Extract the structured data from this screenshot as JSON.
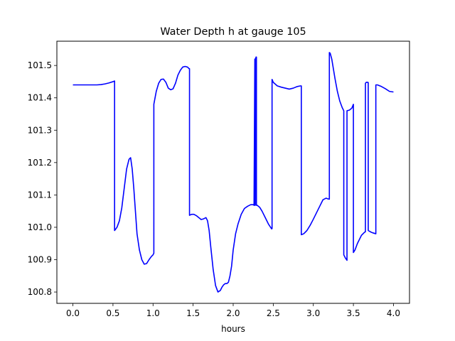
{
  "chart_data": {
    "type": "line",
    "title": "Water Depth h at gauge 105",
    "xlabel": "hours",
    "ylabel": "",
    "xlim": [
      -0.2,
      4.2
    ],
    "ylim": [
      100.765,
      101.575
    ],
    "x_ticks": [
      0.0,
      0.5,
      1.0,
      1.5,
      2.0,
      2.5,
      3.0,
      3.5,
      4.0
    ],
    "x_tick_labels": [
      "0.0",
      "0.5",
      "1.0",
      "1.5",
      "2.0",
      "2.5",
      "3.0",
      "3.5",
      "4.0"
    ],
    "y_ticks": [
      100.8,
      100.9,
      101.0,
      101.1,
      101.2,
      101.3,
      101.4,
      101.5
    ],
    "y_tick_labels": [
      "100.8",
      "100.9",
      "101.0",
      "101.1",
      "101.2",
      "101.3",
      "101.4",
      "101.5"
    ],
    "grid": false,
    "line_color": "#0000ff",
    "series": [
      {
        "x": [
          0.0,
          0.1,
          0.2,
          0.3,
          0.35,
          0.4,
          0.45,
          0.5,
          0.52,
          0.52,
          0.55,
          0.58,
          0.61,
          0.64,
          0.67,
          0.7,
          0.72,
          0.74,
          0.76,
          0.78,
          0.8,
          0.83,
          0.86,
          0.89,
          0.92,
          0.95,
          0.98,
          1.0,
          1.01,
          1.01,
          1.04,
          1.07,
          1.1,
          1.13,
          1.16,
          1.19,
          1.22,
          1.25,
          1.28,
          1.31,
          1.34,
          1.37,
          1.4,
          1.43,
          1.45,
          1.455,
          1.455,
          1.48,
          1.51,
          1.54,
          1.57,
          1.6,
          1.63,
          1.66,
          1.68,
          1.7,
          1.72,
          1.75,
          1.78,
          1.81,
          1.84,
          1.86,
          1.88,
          1.9,
          1.92,
          1.94,
          1.96,
          1.98,
          2.0,
          2.03,
          2.06,
          2.1,
          2.14,
          2.18,
          2.22,
          2.25,
          2.26,
          2.27,
          2.27,
          2.275,
          2.28,
          2.285,
          2.29,
          2.29,
          2.3,
          2.33,
          2.36,
          2.4,
          2.44,
          2.48,
          2.485,
          2.485,
          2.5,
          2.55,
          2.6,
          2.65,
          2.7,
          2.75,
          2.8,
          2.84,
          2.85,
          2.85,
          2.88,
          2.92,
          2.96,
          3.0,
          3.04,
          3.08,
          3.12,
          3.16,
          3.18,
          3.2,
          3.2,
          3.21,
          3.23,
          3.25,
          3.27,
          3.3,
          3.33,
          3.36,
          3.38,
          3.38,
          3.4,
          3.42,
          3.42,
          3.45,
          3.48,
          3.5,
          3.5,
          3.52,
          3.55,
          3.6,
          3.64,
          3.65,
          3.65,
          3.66,
          3.68,
          3.685,
          3.685,
          3.7,
          3.72,
          3.74,
          3.78,
          3.78,
          3.8,
          3.85,
          3.9,
          3.95,
          4.0
        ],
        "y": [
          101.44,
          101.44,
          101.44,
          101.44,
          101.441,
          101.443,
          101.446,
          101.45,
          101.452,
          100.99,
          101.0,
          101.02,
          101.06,
          101.12,
          101.18,
          101.21,
          101.215,
          101.18,
          101.12,
          101.05,
          100.98,
          100.93,
          100.9,
          100.886,
          100.888,
          100.9,
          100.91,
          100.915,
          100.92,
          101.38,
          101.42,
          101.445,
          101.457,
          101.458,
          101.448,
          101.43,
          101.425,
          101.428,
          101.445,
          101.47,
          101.485,
          101.495,
          101.497,
          101.495,
          101.49,
          101.49,
          101.037,
          101.04,
          101.04,
          101.036,
          101.03,
          101.024,
          101.026,
          101.03,
          101.02,
          100.99,
          100.94,
          100.87,
          100.82,
          100.8,
          100.805,
          100.815,
          100.822,
          100.826,
          100.826,
          100.83,
          100.85,
          100.88,
          100.93,
          100.98,
          101.01,
          101.04,
          101.058,
          101.065,
          101.07,
          101.07,
          101.068,
          101.52,
          101.068,
          101.068,
          101.52,
          101.526,
          101.526,
          101.068,
          101.068,
          101.062,
          101.05,
          101.03,
          101.01,
          100.995,
          100.996,
          101.457,
          101.448,
          101.437,
          101.433,
          101.43,
          101.427,
          101.43,
          101.435,
          101.437,
          101.437,
          100.977,
          100.98,
          100.99,
          101.006,
          101.025,
          101.045,
          101.065,
          101.085,
          101.09,
          101.088,
          101.087,
          101.54,
          101.538,
          101.52,
          101.49,
          101.46,
          101.42,
          101.39,
          101.37,
          101.36,
          100.915,
          100.905,
          100.898,
          101.36,
          101.362,
          101.368,
          101.38,
          100.922,
          100.93,
          100.95,
          100.975,
          100.985,
          100.986,
          101.445,
          101.448,
          101.448,
          101.447,
          100.99,
          100.988,
          100.985,
          100.983,
          100.98,
          101.44,
          101.44,
          101.435,
          101.428,
          101.42,
          101.418
        ]
      }
    ]
  }
}
